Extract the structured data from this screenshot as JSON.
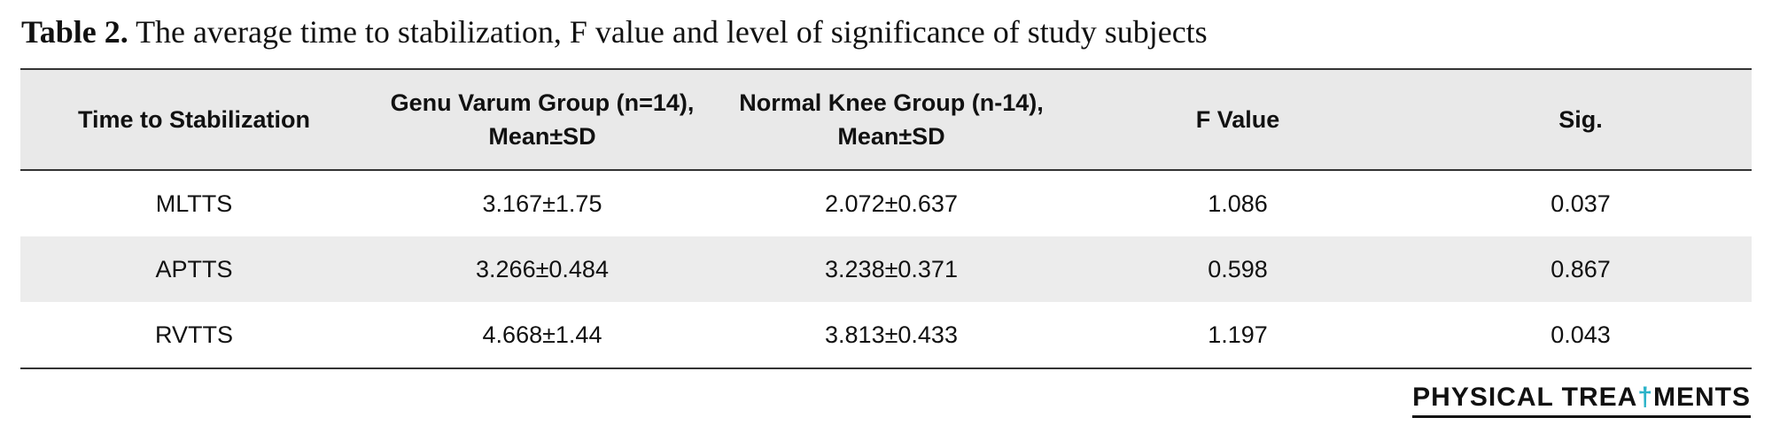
{
  "caption": {
    "label": "Table 2.",
    "text": " The average time to stabilization, F value and level of significance of study subjects"
  },
  "table": {
    "columns": [
      "Time to Stabilization",
      "Genu Varum Group (n=14), Mean±SD",
      "Normal Knee Group (n-14), Mean±SD",
      "F Value",
      "Sig."
    ],
    "rows": [
      [
        "MLTTS",
        "3.167±1.75",
        "2.072±0.637",
        "1.086",
        "0.037"
      ],
      [
        "APTTS",
        "3.266±0.484",
        "3.238±0.371",
        "0.598",
        "0.867"
      ],
      [
        "RVTTS",
        "4.668±1.44",
        "3.813±0.433",
        "1.197",
        "0.043"
      ]
    ]
  },
  "logo": {
    "text_a": "PHYSICAL TREA",
    "text_b": "†",
    "text_c": "MENTS",
    "accent_color": "#2bb3c8"
  }
}
